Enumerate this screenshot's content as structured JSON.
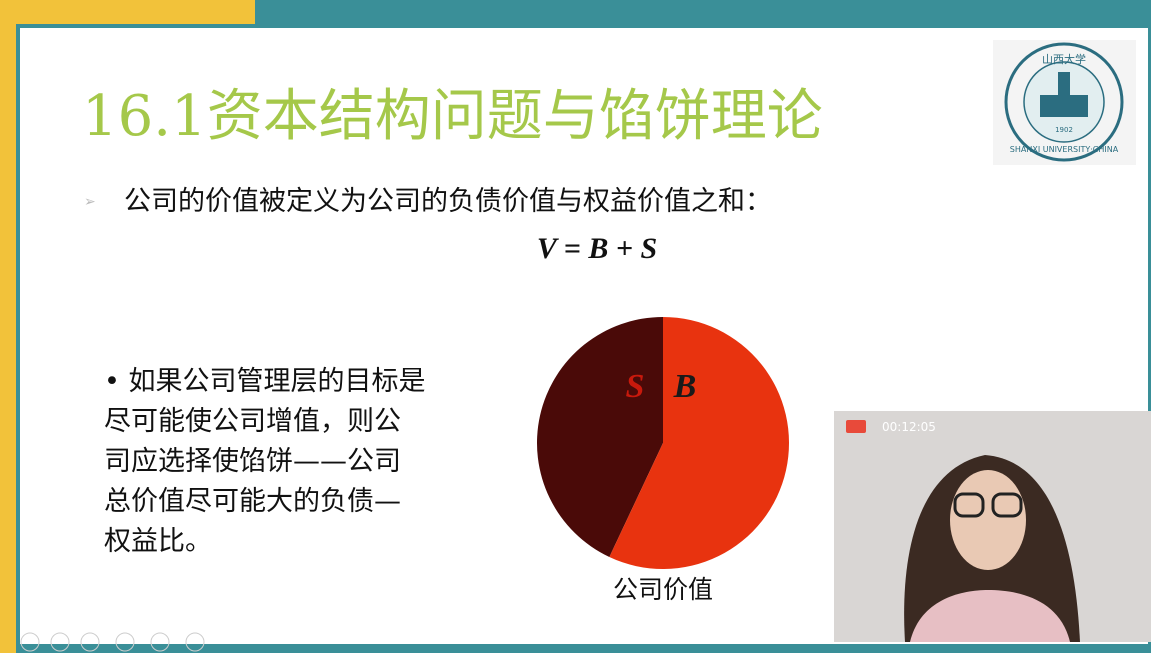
{
  "slide": {
    "title": "16.1资本结构问题与馅饼理论",
    "bullet1": "公司的价值被定义为公司的负债价值与权益价值之和：",
    "equation": "V = B + S",
    "bullet2": [
      "• 如果公司管理层的目标是",
      "尽可能使公司增值，则公",
      "司应选择使馅饼——公司",
      "总价值尽可能大的负债—",
      "权益比。"
    ],
    "logo": {
      "name": "SHANXI UNIVERSITY·CHINA",
      "year": "1902",
      "chars": "山西大学"
    }
  },
  "chart_data": {
    "type": "pie",
    "categories": [
      "S",
      "B"
    ],
    "values": [
      43,
      57
    ],
    "colors": [
      "#4a0a08",
      "#e8330f"
    ],
    "label_colors": [
      "#c8190c",
      "#1a1a1a"
    ],
    "caption": "公司价值"
  },
  "video": {
    "timer": "00:12:05"
  }
}
